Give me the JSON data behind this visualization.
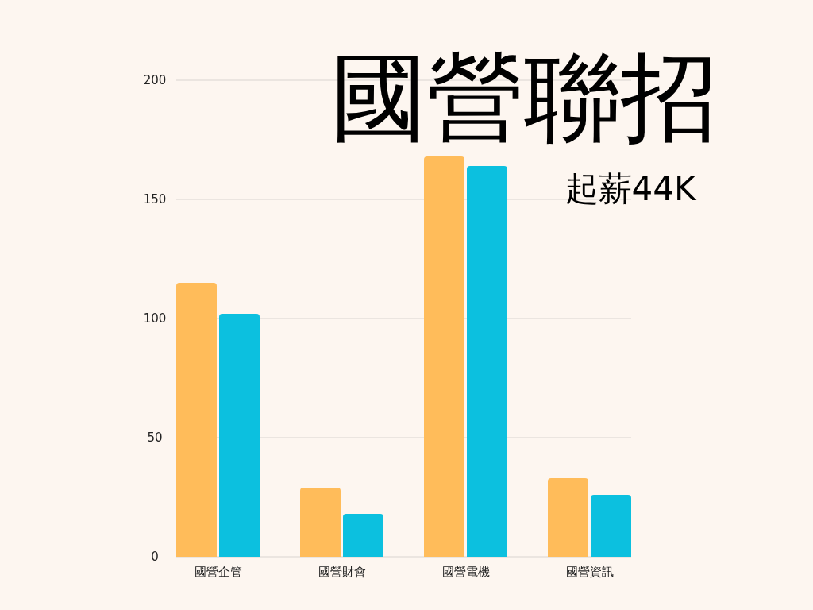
{
  "chart_data": {
    "type": "bar",
    "title": "國營聯招",
    "subtitle": "起薪44K",
    "categories": [
      "國營企管",
      "國營財會",
      "國營電機",
      "國營資訊"
    ],
    "series": [
      {
        "color": "#ffbc5a",
        "values": [
          115,
          29,
          168,
          33
        ]
      },
      {
        "color": "#0cc0df",
        "values": [
          102,
          18,
          164,
          26
        ]
      }
    ],
    "ylim": [
      0,
      200
    ],
    "yticks": [
      0,
      50,
      100,
      150,
      200
    ],
    "grid": "y"
  }
}
